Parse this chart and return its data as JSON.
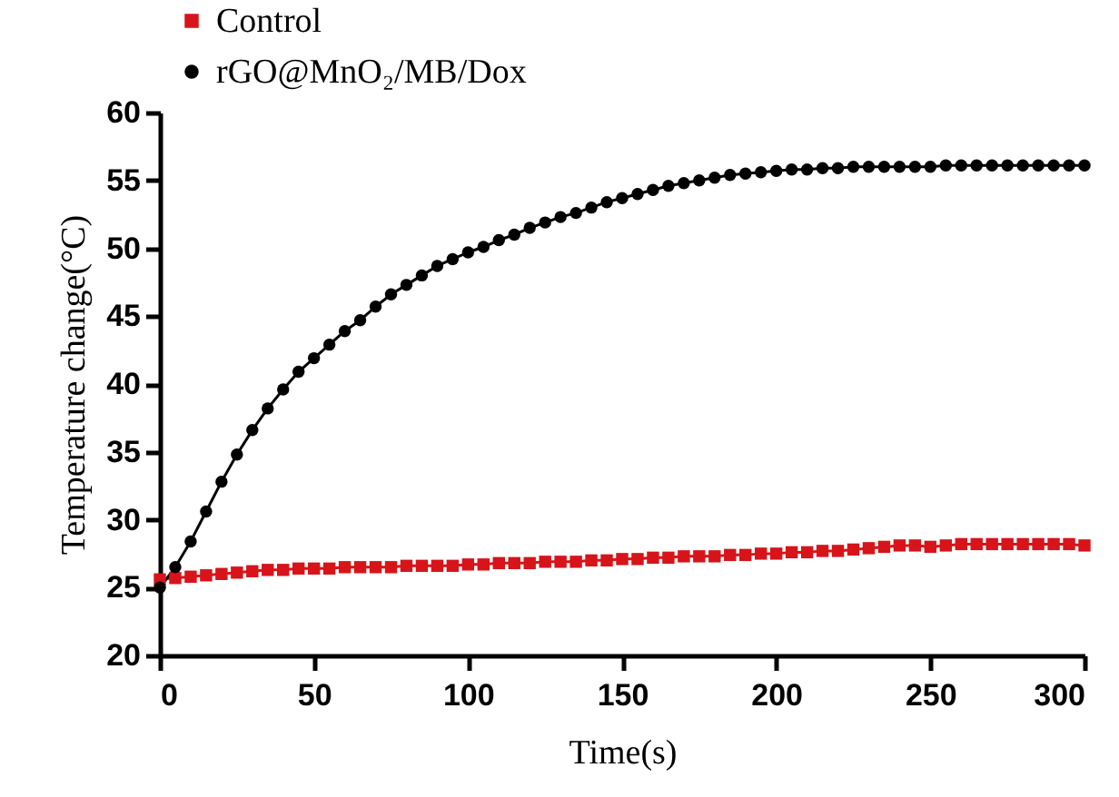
{
  "chart_data": {
    "type": "line",
    "xlabel": "Time(s)",
    "ylabel": "Temperature change(°C)",
    "x": [
      0,
      5,
      10,
      15,
      20,
      25,
      30,
      35,
      40,
      45,
      50,
      55,
      60,
      65,
      70,
      75,
      80,
      85,
      90,
      95,
      100,
      105,
      110,
      115,
      120,
      125,
      130,
      135,
      140,
      145,
      150,
      155,
      160,
      165,
      170,
      175,
      180,
      185,
      190,
      195,
      200,
      205,
      210,
      215,
      220,
      225,
      230,
      235,
      240,
      245,
      250,
      255,
      260,
      265,
      270,
      275,
      280,
      285,
      290,
      295,
      300
    ],
    "series": [
      {
        "name": "Control",
        "color": "#d7141a",
        "marker": "square",
        "values": [
          25.6,
          25.7,
          25.8,
          25.9,
          26.0,
          26.1,
          26.2,
          26.3,
          26.3,
          26.4,
          26.4,
          26.4,
          26.5,
          26.5,
          26.5,
          26.5,
          26.6,
          26.6,
          26.6,
          26.6,
          26.7,
          26.7,
          26.8,
          26.8,
          26.8,
          26.9,
          26.9,
          26.9,
          27.0,
          27.0,
          27.1,
          27.1,
          27.2,
          27.2,
          27.3,
          27.3,
          27.3,
          27.4,
          27.4,
          27.5,
          27.5,
          27.6,
          27.6,
          27.7,
          27.7,
          27.8,
          27.9,
          28.0,
          28.1,
          28.1,
          28.0,
          28.1,
          28.2,
          28.2,
          28.2,
          28.2,
          28.2,
          28.2,
          28.2,
          28.2,
          28.1
        ]
      },
      {
        "name": "rGO@MnO₂/MB/Dox",
        "color": "#000000",
        "marker": "circle",
        "values": [
          25.0,
          26.5,
          28.4,
          30.6,
          32.8,
          34.8,
          36.6,
          38.2,
          39.6,
          40.9,
          41.9,
          42.9,
          43.9,
          44.7,
          45.7,
          46.6,
          47.3,
          48.0,
          48.7,
          49.2,
          49.7,
          50.1,
          50.6,
          51.0,
          51.5,
          51.9,
          52.3,
          52.6,
          53.0,
          53.4,
          53.7,
          54.0,
          54.3,
          54.6,
          54.8,
          55.0,
          55.2,
          55.4,
          55.5,
          55.6,
          55.7,
          55.8,
          55.8,
          55.9,
          55.9,
          56.0,
          56.0,
          56.0,
          56.0,
          56.0,
          56.0,
          56.1,
          56.1,
          56.1,
          56.1,
          56.1,
          56.1,
          56.1,
          56.1,
          56.1,
          56.1
        ]
      }
    ],
    "xlim": [
      0,
      300
    ],
    "xticks": [
      0,
      50,
      100,
      150,
      200,
      250,
      300
    ],
    "ylim": [
      20,
      60
    ],
    "yticks": [
      20,
      25,
      30,
      35,
      40,
      45,
      50,
      55,
      60
    ],
    "grid": false,
    "legend": "top left",
    "line_style": "solid"
  }
}
